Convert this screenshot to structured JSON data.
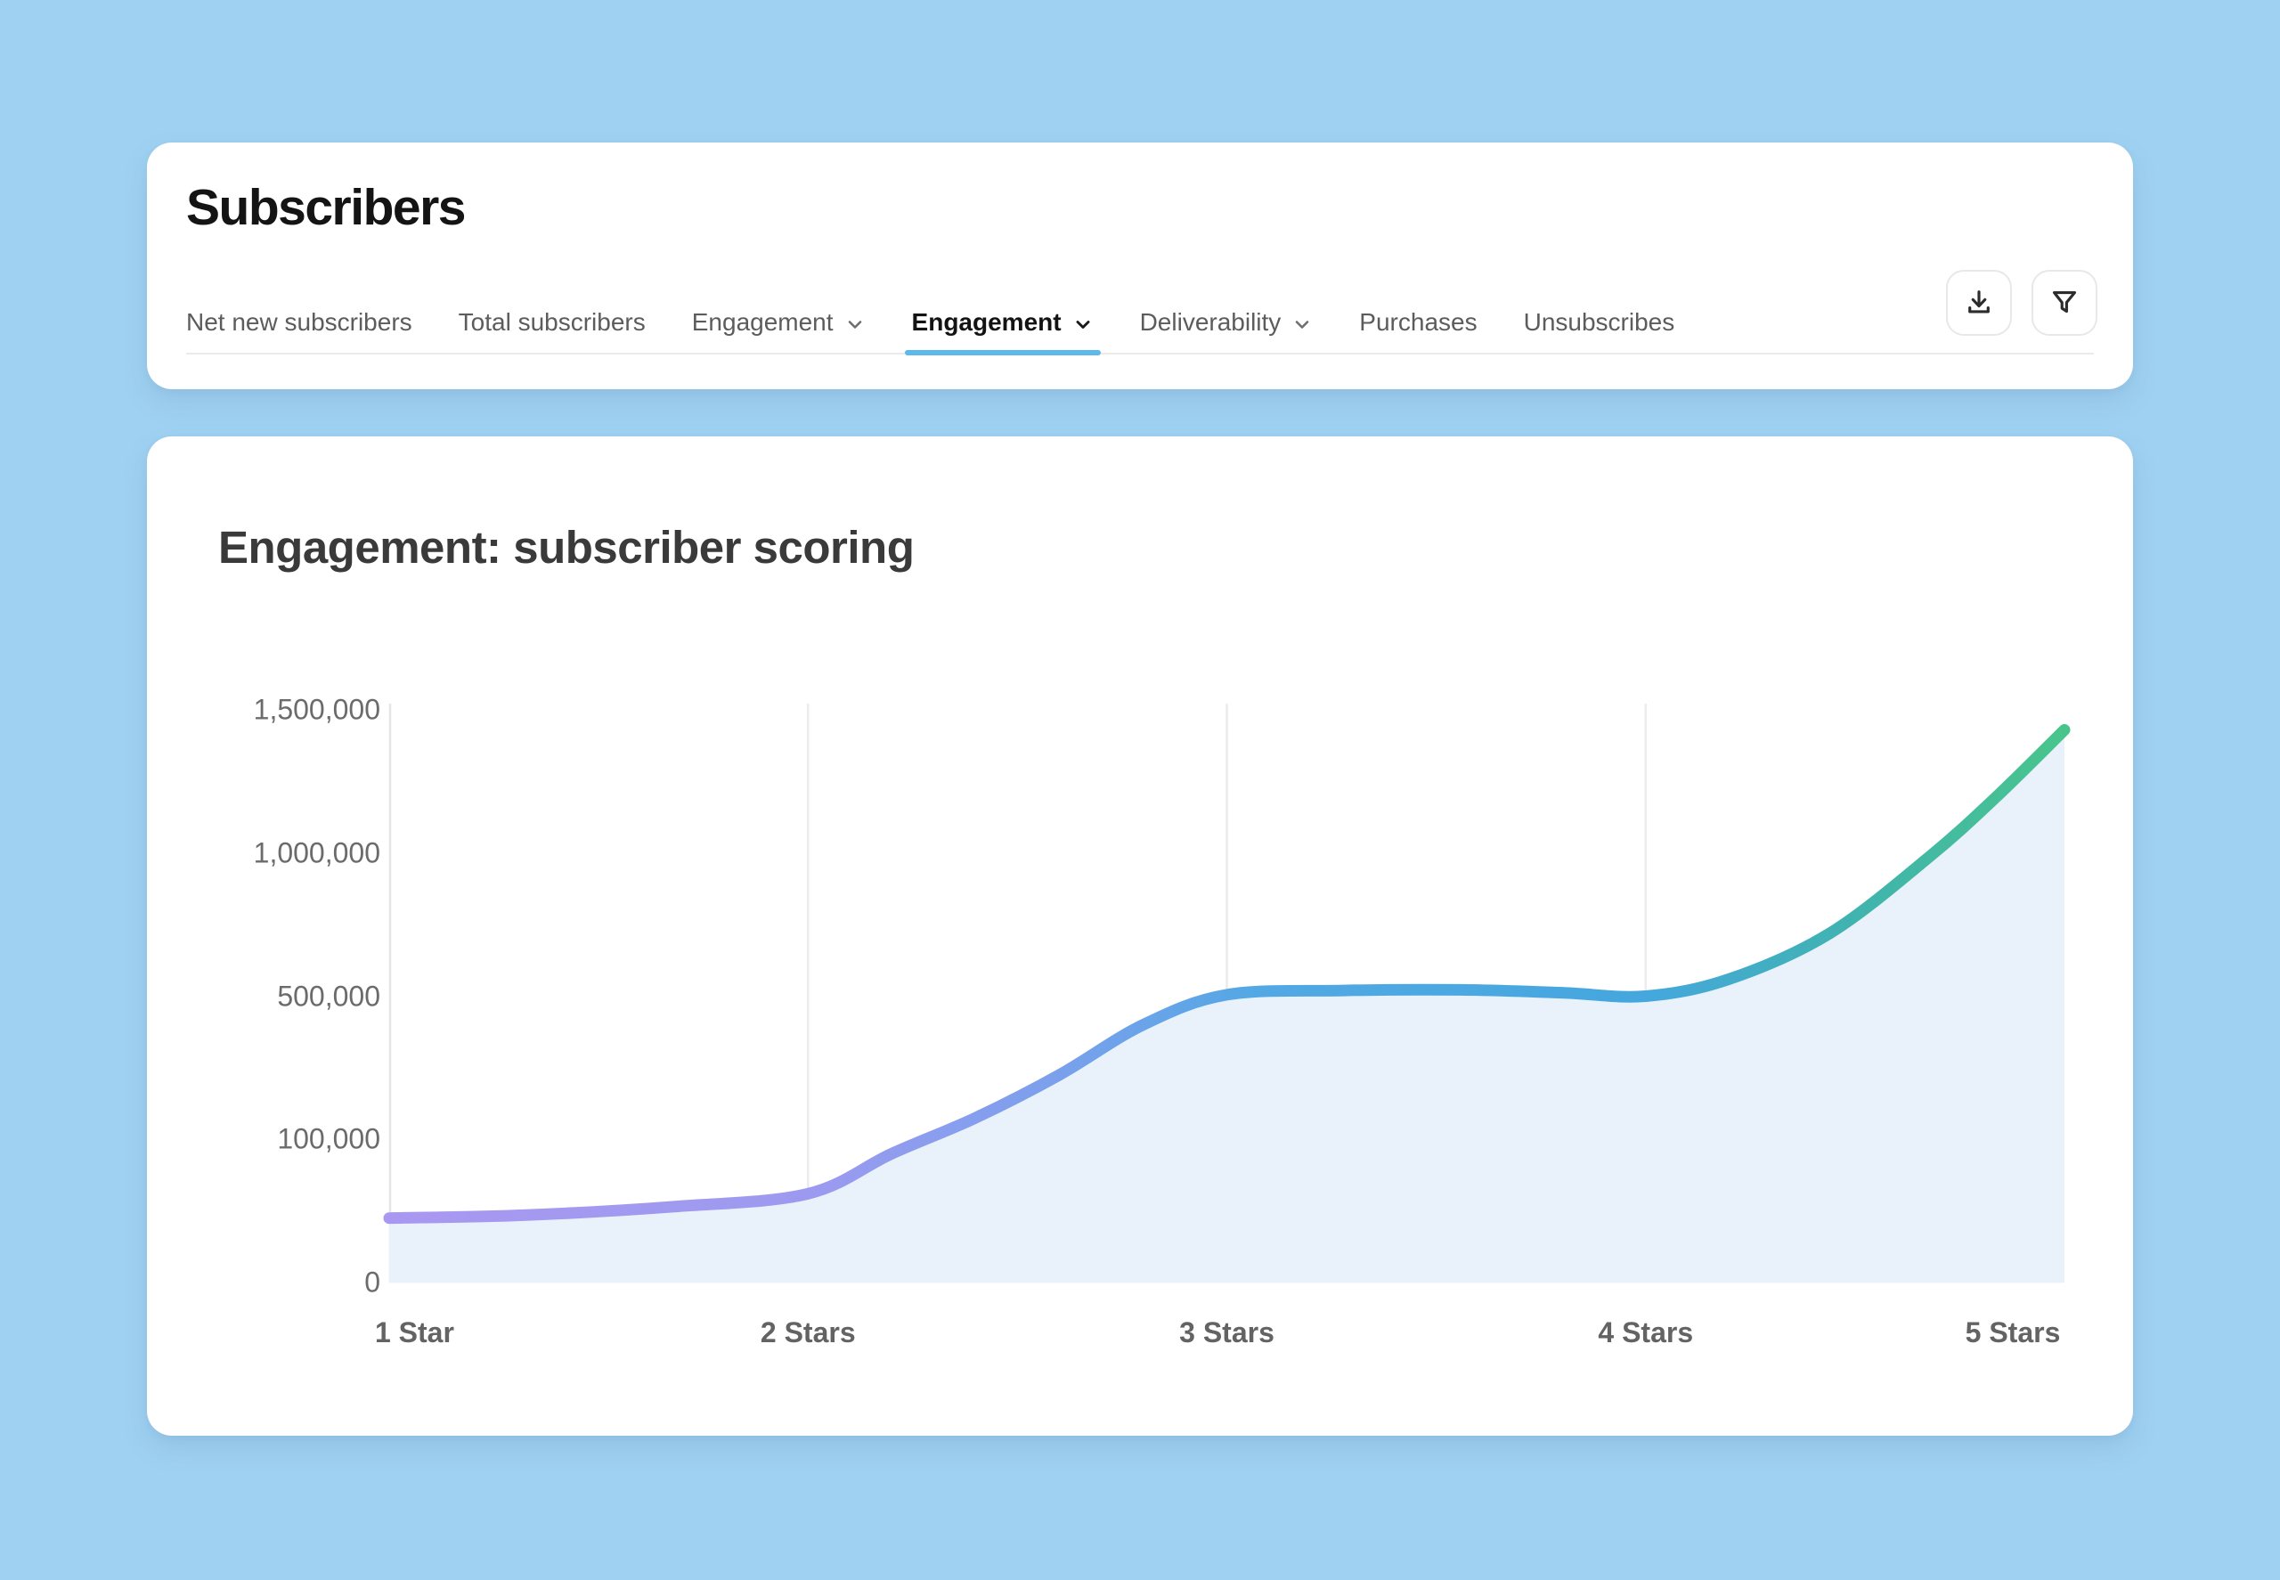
{
  "theme": {
    "page_bg": "#9fd1f2",
    "card_bg": "#ffffff",
    "accent_underline": "#5db9ec",
    "divider": "#ebebeb",
    "title_text": "#141414",
    "tab_inactive_text": "#5c5c5c",
    "tab_active_text": "#131313",
    "chart_title_text": "#3a3a3a",
    "axis_text": "#6b6b6b"
  },
  "header": {
    "title": "Subscribers",
    "tabs": [
      {
        "label": "Net new subscribers",
        "chevron": false,
        "active": false
      },
      {
        "label": "Total subscribers",
        "chevron": false,
        "active": false
      },
      {
        "label": "Engagement",
        "chevron": true,
        "active": false
      },
      {
        "label": "Engagement",
        "chevron": true,
        "active": true
      },
      {
        "label": "Deliverability",
        "chevron": true,
        "active": false
      },
      {
        "label": "Purchases",
        "chevron": false,
        "active": false
      },
      {
        "label": "Unsubscribes",
        "chevron": false,
        "active": false
      }
    ],
    "actions": [
      {
        "name": "download",
        "icon": "download-icon"
      },
      {
        "name": "filter",
        "icon": "filter-icon"
      }
    ]
  },
  "chart_card": {
    "title": "Engagement: subscriber scoring"
  },
  "chart_data": {
    "type": "area",
    "title": "Engagement: subscriber scoring",
    "categories": [
      "1 Star",
      "2 Stars",
      "3 Stars",
      "4 Stars",
      "5 Stars"
    ],
    "values": [
      45000,
      62000,
      505000,
      500000,
      1430000
    ],
    "x_axis": {
      "tick_labels": [
        "1 Star",
        "2 Stars",
        "3 Stars",
        "4 Stars",
        "5 Stars"
      ]
    },
    "y_axis": {
      "tick_values": [
        0,
        100000,
        500000,
        1000000,
        1500000
      ],
      "tick_labels": [
        "0",
        "100,000",
        "500,000",
        "1,000,000",
        "1,500,000"
      ],
      "scale": "non-linear-equally-spaced-ticks"
    },
    "grid": {
      "vertical_gridlines_at": [
        "2 Stars",
        "3 Stars",
        "4 Stars"
      ],
      "horizontal_gridlines": false
    },
    "legend_visible": false,
    "area_fill": "#e9f2fa",
    "line_width": 13,
    "line_gradient": [
      {
        "offset": 0,
        "color": "#a998f1"
      },
      {
        "offset": 0.25,
        "color": "#9c9af0"
      },
      {
        "offset": 0.4,
        "color": "#7aa0ec"
      },
      {
        "offset": 0.52,
        "color": "#52a8e4"
      },
      {
        "offset": 0.75,
        "color": "#45a7de"
      },
      {
        "offset": 0.88,
        "color": "#40b4ad"
      },
      {
        "offset": 1,
        "color": "#49c58c"
      }
    ],
    "curve_points": [
      [
        0.0,
        45000
      ],
      [
        0.08,
        47000
      ],
      [
        0.17,
        53000
      ],
      [
        0.25,
        62000
      ],
      [
        0.3,
        90000
      ],
      [
        0.35,
        160000
      ],
      [
        0.4,
        280000
      ],
      [
        0.45,
        420000
      ],
      [
        0.5,
        505000
      ],
      [
        0.57,
        520000
      ],
      [
        0.64,
        522000
      ],
      [
        0.7,
        512000
      ],
      [
        0.75,
        500000
      ],
      [
        0.8,
        560000
      ],
      [
        0.86,
        720000
      ],
      [
        0.92,
        990000
      ],
      [
        0.96,
        1200000
      ],
      [
        1.0,
        1430000
      ]
    ]
  }
}
